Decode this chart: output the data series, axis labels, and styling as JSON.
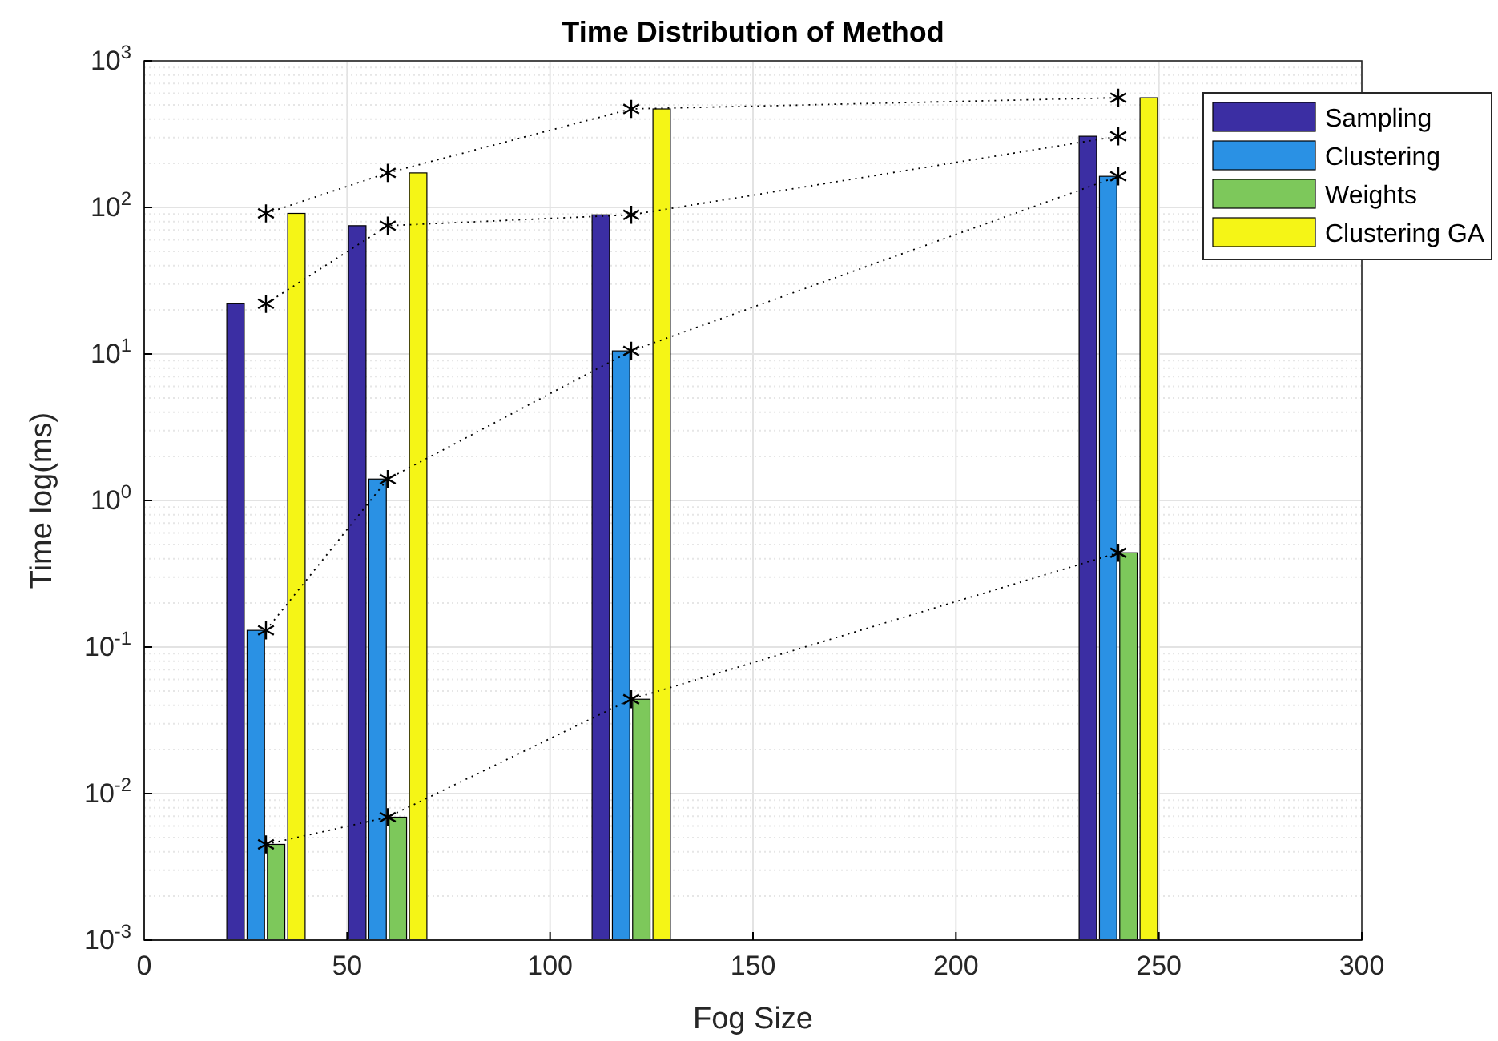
{
  "chart_data": {
    "type": "bar",
    "title": "Time Distribution of Method",
    "xlabel": "Fog Size",
    "ylabel": "Time log(ms)",
    "x": [
      30,
      60,
      120,
      240
    ],
    "log": "y",
    "grid": true,
    "legend": "top right",
    "xlim": [
      0,
      300
    ],
    "xticks": [
      0,
      50,
      100,
      150,
      200,
      250,
      300
    ],
    "ylim": [
      0.001,
      1000
    ],
    "yticks": [
      {
        "value": 0.001,
        "label": "10$^{-3}$"
      },
      {
        "value": 0.01,
        "label": "10$^{-2}$"
      },
      {
        "value": 0.1,
        "label": "10$^{-1}$"
      },
      {
        "value": 1,
        "label": "10$^{0}$"
      },
      {
        "value": 10,
        "label": "10$^{1}$"
      },
      {
        "value": 100,
        "label": "10$^{2}$"
      },
      {
        "value": 1000,
        "label": "10$^{3}$"
      }
    ],
    "series": [
      {
        "name": "Sampling",
        "color": "#3b2ea3",
        "values": [
          22,
          75,
          89,
          306
        ]
      },
      {
        "name": "Clustering",
        "color": "#2a91e4",
        "values": [
          0.13,
          1.4,
          10.5,
          163
        ]
      },
      {
        "name": "Weights",
        "color": "#7dc85b",
        "values": [
          0.0045,
          0.0069,
          0.044,
          0.44
        ]
      },
      {
        "name": "Clustering GA",
        "color": "#f5f516",
        "values": [
          91,
          172,
          470,
          560
        ]
      },
      {
        "type": "line",
        "color": "#000000",
        "marker": "cross",
        "line_style": "dotted",
        "x": [
          30,
          60,
          120,
          240
        ],
        "values": [
          22,
          75,
          89,
          306
        ]
      },
      {
        "type": "line",
        "color": "#000000",
        "marker": "cross",
        "line_style": "dotted",
        "x": [
          30,
          60,
          120,
          240
        ],
        "values": [
          0.13,
          1.4,
          10.5,
          163
        ]
      },
      {
        "type": "line",
        "color": "#000000",
        "marker": "cross",
        "line_style": "dotted",
        "x": [
          30,
          60,
          120,
          240
        ],
        "values": [
          0.0045,
          0.0069,
          0.044,
          0.44
        ]
      },
      {
        "type": "line",
        "color": "#000000",
        "marker": "cross",
        "line_style": "dotted",
        "x": [
          30,
          60,
          120,
          240
        ],
        "values": [
          91,
          172,
          470,
          560
        ]
      }
    ]
  }
}
